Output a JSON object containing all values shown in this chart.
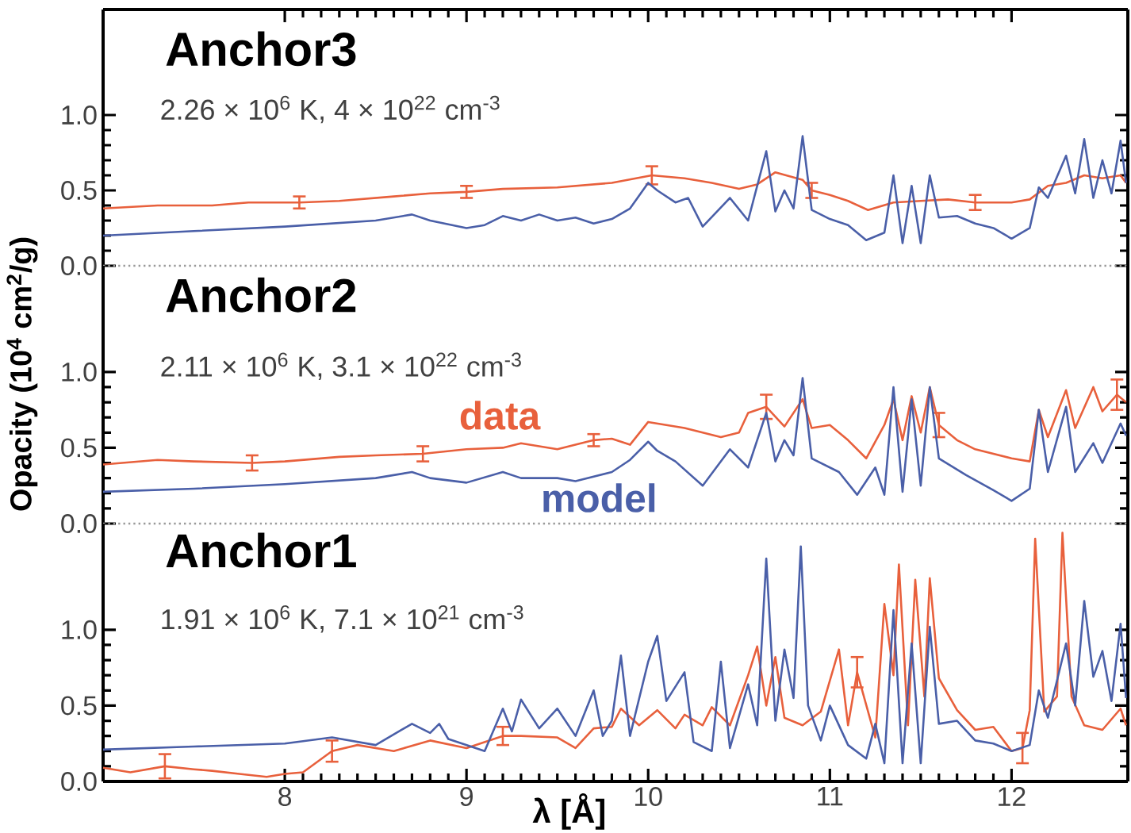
{
  "chart_data": [
    {
      "type": "line",
      "title": "Anchor3",
      "subtitle": "2.26 × 10$^{6}$ K, 4 × 10$^{22}$ cm$^{-3}$",
      "xlim": [
        7.0,
        12.64
      ],
      "ylim": [
        0,
        1.7
      ],
      "xticks": [
        8,
        9,
        10,
        11,
        12
      ],
      "yticks": [
        {
          "value": 0,
          "label": "0.0"
        },
        {
          "value": 0.5,
          "label": "0.5"
        },
        {
          "value": 1.0,
          "label": "1.0"
        }
      ],
      "tick_labels": "y",
      "ref_lines": [
        {
          "axis": "y",
          "value": 0,
          "line_style": "dotted",
          "color": "#999999"
        }
      ],
      "series": [
        {
          "color": "#e8603c",
          "x": [
            7.0,
            7.3,
            7.6,
            7.8,
            8.08,
            8.3,
            8.6,
            8.8,
            9.0,
            9.2,
            9.5,
            9.8,
            10.02,
            10.2,
            10.35,
            10.5,
            10.6,
            10.7,
            10.85,
            10.9,
            11.0,
            11.1,
            11.21,
            11.35,
            11.5,
            11.65,
            11.8,
            12.0,
            12.1,
            12.2,
            12.3,
            12.4,
            12.5,
            12.6,
            12.63
          ],
          "values": [
            0.38,
            0.4,
            0.4,
            0.42,
            0.42,
            0.43,
            0.46,
            0.48,
            0.49,
            0.51,
            0.52,
            0.55,
            0.6,
            0.58,
            0.55,
            0.51,
            0.54,
            0.62,
            0.57,
            0.5,
            0.47,
            0.43,
            0.37,
            0.42,
            0.43,
            0.44,
            0.42,
            0.42,
            0.44,
            0.53,
            0.55,
            0.6,
            0.58,
            0.6,
            0.55
          ],
          "errors": [
            null,
            null,
            null,
            null,
            0.04,
            null,
            null,
            null,
            0.04,
            null,
            null,
            null,
            0.06,
            null,
            null,
            null,
            null,
            null,
            null,
            0.05,
            null,
            null,
            null,
            null,
            null,
            null,
            0.05,
            null,
            null,
            null,
            null,
            null,
            null,
            null,
            null
          ]
        },
        {
          "color": "#4a5fa8",
          "x": [
            7.0,
            7.5,
            8.0,
            8.5,
            8.7,
            8.8,
            9.0,
            9.1,
            9.2,
            9.3,
            9.4,
            9.5,
            9.6,
            9.7,
            9.8,
            9.9,
            10.0,
            10.05,
            10.15,
            10.22,
            10.3,
            10.45,
            10.55,
            10.65,
            10.7,
            10.75,
            10.8,
            10.85,
            10.9,
            11.0,
            11.1,
            11.2,
            11.3,
            11.35,
            11.4,
            11.45,
            11.5,
            11.55,
            11.6,
            11.7,
            11.8,
            11.9,
            12.0,
            12.1,
            12.15,
            12.2,
            12.3,
            12.35,
            12.4,
            12.45,
            12.5,
            12.55,
            12.6,
            12.63
          ],
          "values": [
            0.2,
            0.23,
            0.26,
            0.3,
            0.34,
            0.3,
            0.25,
            0.27,
            0.33,
            0.3,
            0.34,
            0.3,
            0.32,
            0.28,
            0.31,
            0.38,
            0.55,
            0.5,
            0.42,
            0.45,
            0.26,
            0.45,
            0.3,
            0.76,
            0.36,
            0.5,
            0.38,
            0.86,
            0.37,
            0.31,
            0.27,
            0.17,
            0.22,
            0.6,
            0.15,
            0.53,
            0.15,
            0.6,
            0.32,
            0.33,
            0.28,
            0.25,
            0.18,
            0.25,
            0.52,
            0.45,
            0.73,
            0.48,
            0.84,
            0.45,
            0.7,
            0.48,
            0.83,
            0.55
          ]
        }
      ]
    },
    {
      "type": "line",
      "title": "Anchor2",
      "subtitle": "2.11 × 10$^{6}$ K, 3.1 × 10$^{22}$ cm$^{-3}$",
      "ylabel": "Opacity (10$^{4}$ cm$^{2}$/g)",
      "xlim": [
        7.0,
        12.64
      ],
      "ylim": [
        0,
        1.7
      ],
      "xticks": [
        8,
        9,
        10,
        11,
        12
      ],
      "yticks": [
        {
          "value": 0,
          "label": "0.0"
        },
        {
          "value": 0.5,
          "label": "0.5"
        },
        {
          "value": 1.0,
          "label": "1.0"
        }
      ],
      "tick_labels": "y",
      "ref_lines": [
        {
          "axis": "y",
          "value": 0,
          "line_style": "dotted",
          "color": "#999999"
        }
      ],
      "series": [
        {
          "name": "data",
          "color": "#e8603c",
          "x": [
            7.0,
            7.3,
            7.5,
            7.82,
            8.0,
            8.3,
            8.5,
            8.76,
            9.0,
            9.2,
            9.3,
            9.5,
            9.7,
            9.8,
            9.9,
            10.0,
            10.2,
            10.4,
            10.5,
            10.55,
            10.65,
            10.75,
            10.85,
            10.9,
            11.0,
            11.1,
            11.2,
            11.3,
            11.35,
            11.4,
            11.45,
            11.5,
            11.55,
            11.6,
            11.7,
            11.8,
            11.9,
            12.0,
            12.1,
            12.15,
            12.2,
            12.3,
            12.35,
            12.45,
            12.5,
            12.58,
            12.63
          ],
          "values": [
            0.39,
            0.42,
            0.41,
            0.4,
            0.41,
            0.44,
            0.45,
            0.46,
            0.49,
            0.5,
            0.53,
            0.49,
            0.55,
            0.56,
            0.52,
            0.67,
            0.63,
            0.57,
            0.6,
            0.73,
            0.77,
            0.64,
            0.82,
            0.63,
            0.65,
            0.55,
            0.43,
            0.65,
            0.82,
            0.55,
            0.84,
            0.6,
            0.9,
            0.65,
            0.55,
            0.49,
            0.46,
            0.43,
            0.41,
            0.75,
            0.57,
            0.88,
            0.63,
            0.9,
            0.74,
            0.85,
            0.8
          ],
          "errors": [
            null,
            null,
            null,
            0.05,
            null,
            null,
            null,
            0.05,
            null,
            null,
            null,
            null,
            0.04,
            null,
            null,
            null,
            null,
            null,
            null,
            null,
            0.08,
            null,
            null,
            null,
            null,
            null,
            null,
            null,
            null,
            null,
            null,
            null,
            null,
            0.08,
            null,
            null,
            null,
            null,
            null,
            null,
            null,
            null,
            null,
            null,
            null,
            0.1,
            null
          ]
        },
        {
          "name": "model",
          "color": "#4a5fa8",
          "x": [
            7.0,
            7.5,
            8.0,
            8.5,
            8.7,
            8.8,
            9.0,
            9.2,
            9.3,
            9.5,
            9.6,
            9.8,
            9.9,
            10.0,
            10.05,
            10.15,
            10.3,
            10.45,
            10.55,
            10.65,
            10.7,
            10.75,
            10.8,
            10.85,
            10.9,
            11.05,
            11.15,
            11.25,
            11.3,
            11.35,
            11.4,
            11.45,
            11.5,
            11.55,
            11.6,
            11.75,
            11.9,
            12.0,
            12.1,
            12.15,
            12.2,
            12.3,
            12.35,
            12.45,
            12.5,
            12.6,
            12.63
          ],
          "values": [
            0.21,
            0.23,
            0.26,
            0.3,
            0.34,
            0.3,
            0.27,
            0.34,
            0.3,
            0.3,
            0.28,
            0.34,
            0.42,
            0.54,
            0.48,
            0.41,
            0.25,
            0.49,
            0.37,
            0.73,
            0.41,
            0.55,
            0.45,
            0.96,
            0.43,
            0.34,
            0.19,
            0.37,
            0.19,
            0.9,
            0.21,
            0.82,
            0.25,
            0.9,
            0.43,
            0.32,
            0.22,
            0.15,
            0.23,
            0.75,
            0.34,
            0.77,
            0.34,
            0.53,
            0.4,
            0.66,
            0.58
          ]
        }
      ]
    },
    {
      "type": "line",
      "title": "Anchor1",
      "subtitle": "1.91 × 10$^{6}$ K, 7.1 × 10$^{21}$ cm$^{-3}$",
      "xlabel": "λ [Å]",
      "xlim": [
        7.0,
        12.64
      ],
      "ylim": [
        0,
        1.7
      ],
      "xticks": [
        8,
        9,
        10,
        11,
        12
      ],
      "yticks": [
        {
          "value": 0,
          "label": "0.0"
        },
        {
          "value": 0.5,
          "label": "0.5"
        },
        {
          "value": 1.0,
          "label": "1.0"
        }
      ],
      "series": [
        {
          "color": "#e8603c",
          "x": [
            7.0,
            7.15,
            7.34,
            7.5,
            7.6,
            7.75,
            7.9,
            8.0,
            8.1,
            8.26,
            8.4,
            8.6,
            8.8,
            9.0,
            9.2,
            9.3,
            9.5,
            9.6,
            9.7,
            9.8,
            9.85,
            9.95,
            10.05,
            10.15,
            10.2,
            10.3,
            10.35,
            10.45,
            10.55,
            10.6,
            10.65,
            10.7,
            10.75,
            10.85,
            10.95,
            11.05,
            11.1,
            11.15,
            11.25,
            11.3,
            11.35,
            11.38,
            11.43,
            11.47,
            11.52,
            11.55,
            11.6,
            11.7,
            11.8,
            11.9,
            12.0,
            12.06,
            12.1,
            12.13,
            12.18,
            12.25,
            12.28,
            12.33,
            12.4,
            12.5,
            12.6,
            12.63
          ],
          "values": [
            0.09,
            0.06,
            0.1,
            0.08,
            0.07,
            0.05,
            0.03,
            0.05,
            0.06,
            0.2,
            0.24,
            0.2,
            0.27,
            0.22,
            0.3,
            0.3,
            0.29,
            0.22,
            0.35,
            0.36,
            0.48,
            0.37,
            0.47,
            0.35,
            0.44,
            0.37,
            0.49,
            0.37,
            0.7,
            0.89,
            0.5,
            0.82,
            0.42,
            0.37,
            0.46,
            0.87,
            0.37,
            0.72,
            0.29,
            1.17,
            0.7,
            1.43,
            0.37,
            1.33,
            0.56,
            1.34,
            0.68,
            0.47,
            0.34,
            0.36,
            0.2,
            0.22,
            0.47,
            1.6,
            0.46,
            0.56,
            1.64,
            0.56,
            0.37,
            0.34,
            0.48,
            0.37
          ],
          "errors": [
            null,
            null,
            0.08,
            null,
            null,
            null,
            null,
            null,
            null,
            0.07,
            null,
            null,
            null,
            null,
            0.06,
            null,
            null,
            null,
            null,
            null,
            null,
            null,
            null,
            null,
            null,
            null,
            null,
            null,
            null,
            null,
            null,
            null,
            null,
            null,
            null,
            null,
            null,
            0.1,
            null,
            null,
            null,
            null,
            null,
            null,
            null,
            null,
            null,
            null,
            null,
            null,
            null,
            0.1,
            null,
            null,
            null,
            null,
            null,
            null,
            null,
            null,
            null,
            null
          ]
        },
        {
          "color": "#4a5fa8",
          "x": [
            7.0,
            7.5,
            8.0,
            8.26,
            8.5,
            8.7,
            8.8,
            8.85,
            8.9,
            9.1,
            9.2,
            9.25,
            9.3,
            9.4,
            9.5,
            9.6,
            9.7,
            9.75,
            9.8,
            9.85,
            9.9,
            10.0,
            10.05,
            10.1,
            10.2,
            10.25,
            10.35,
            10.4,
            10.45,
            10.55,
            10.6,
            10.65,
            10.7,
            10.75,
            10.8,
            10.84,
            10.88,
            10.95,
            11.0,
            11.1,
            11.2,
            11.25,
            11.3,
            11.35,
            11.4,
            11.45,
            11.5,
            11.55,
            11.6,
            11.7,
            11.8,
            11.9,
            12.0,
            12.1,
            12.15,
            12.2,
            12.3,
            12.35,
            12.4,
            12.45,
            12.5,
            12.55,
            12.6,
            12.63
          ],
          "values": [
            0.21,
            0.23,
            0.25,
            0.29,
            0.24,
            0.38,
            0.32,
            0.38,
            0.28,
            0.2,
            0.48,
            0.33,
            0.54,
            0.35,
            0.48,
            0.3,
            0.6,
            0.3,
            0.4,
            0.83,
            0.3,
            0.79,
            0.96,
            0.53,
            0.72,
            0.26,
            0.2,
            0.79,
            0.22,
            0.64,
            0.37,
            1.47,
            0.4,
            0.87,
            0.55,
            1.55,
            0.5,
            0.27,
            0.5,
            0.24,
            0.15,
            0.38,
            0.12,
            1.13,
            0.12,
            0.91,
            0.12,
            1.02,
            0.38,
            0.4,
            0.27,
            0.25,
            0.2,
            0.24,
            0.6,
            0.42,
            0.91,
            0.5,
            1.19,
            0.69,
            0.86,
            0.53,
            1.04,
            0.55
          ]
        }
      ]
    }
  ]
}
